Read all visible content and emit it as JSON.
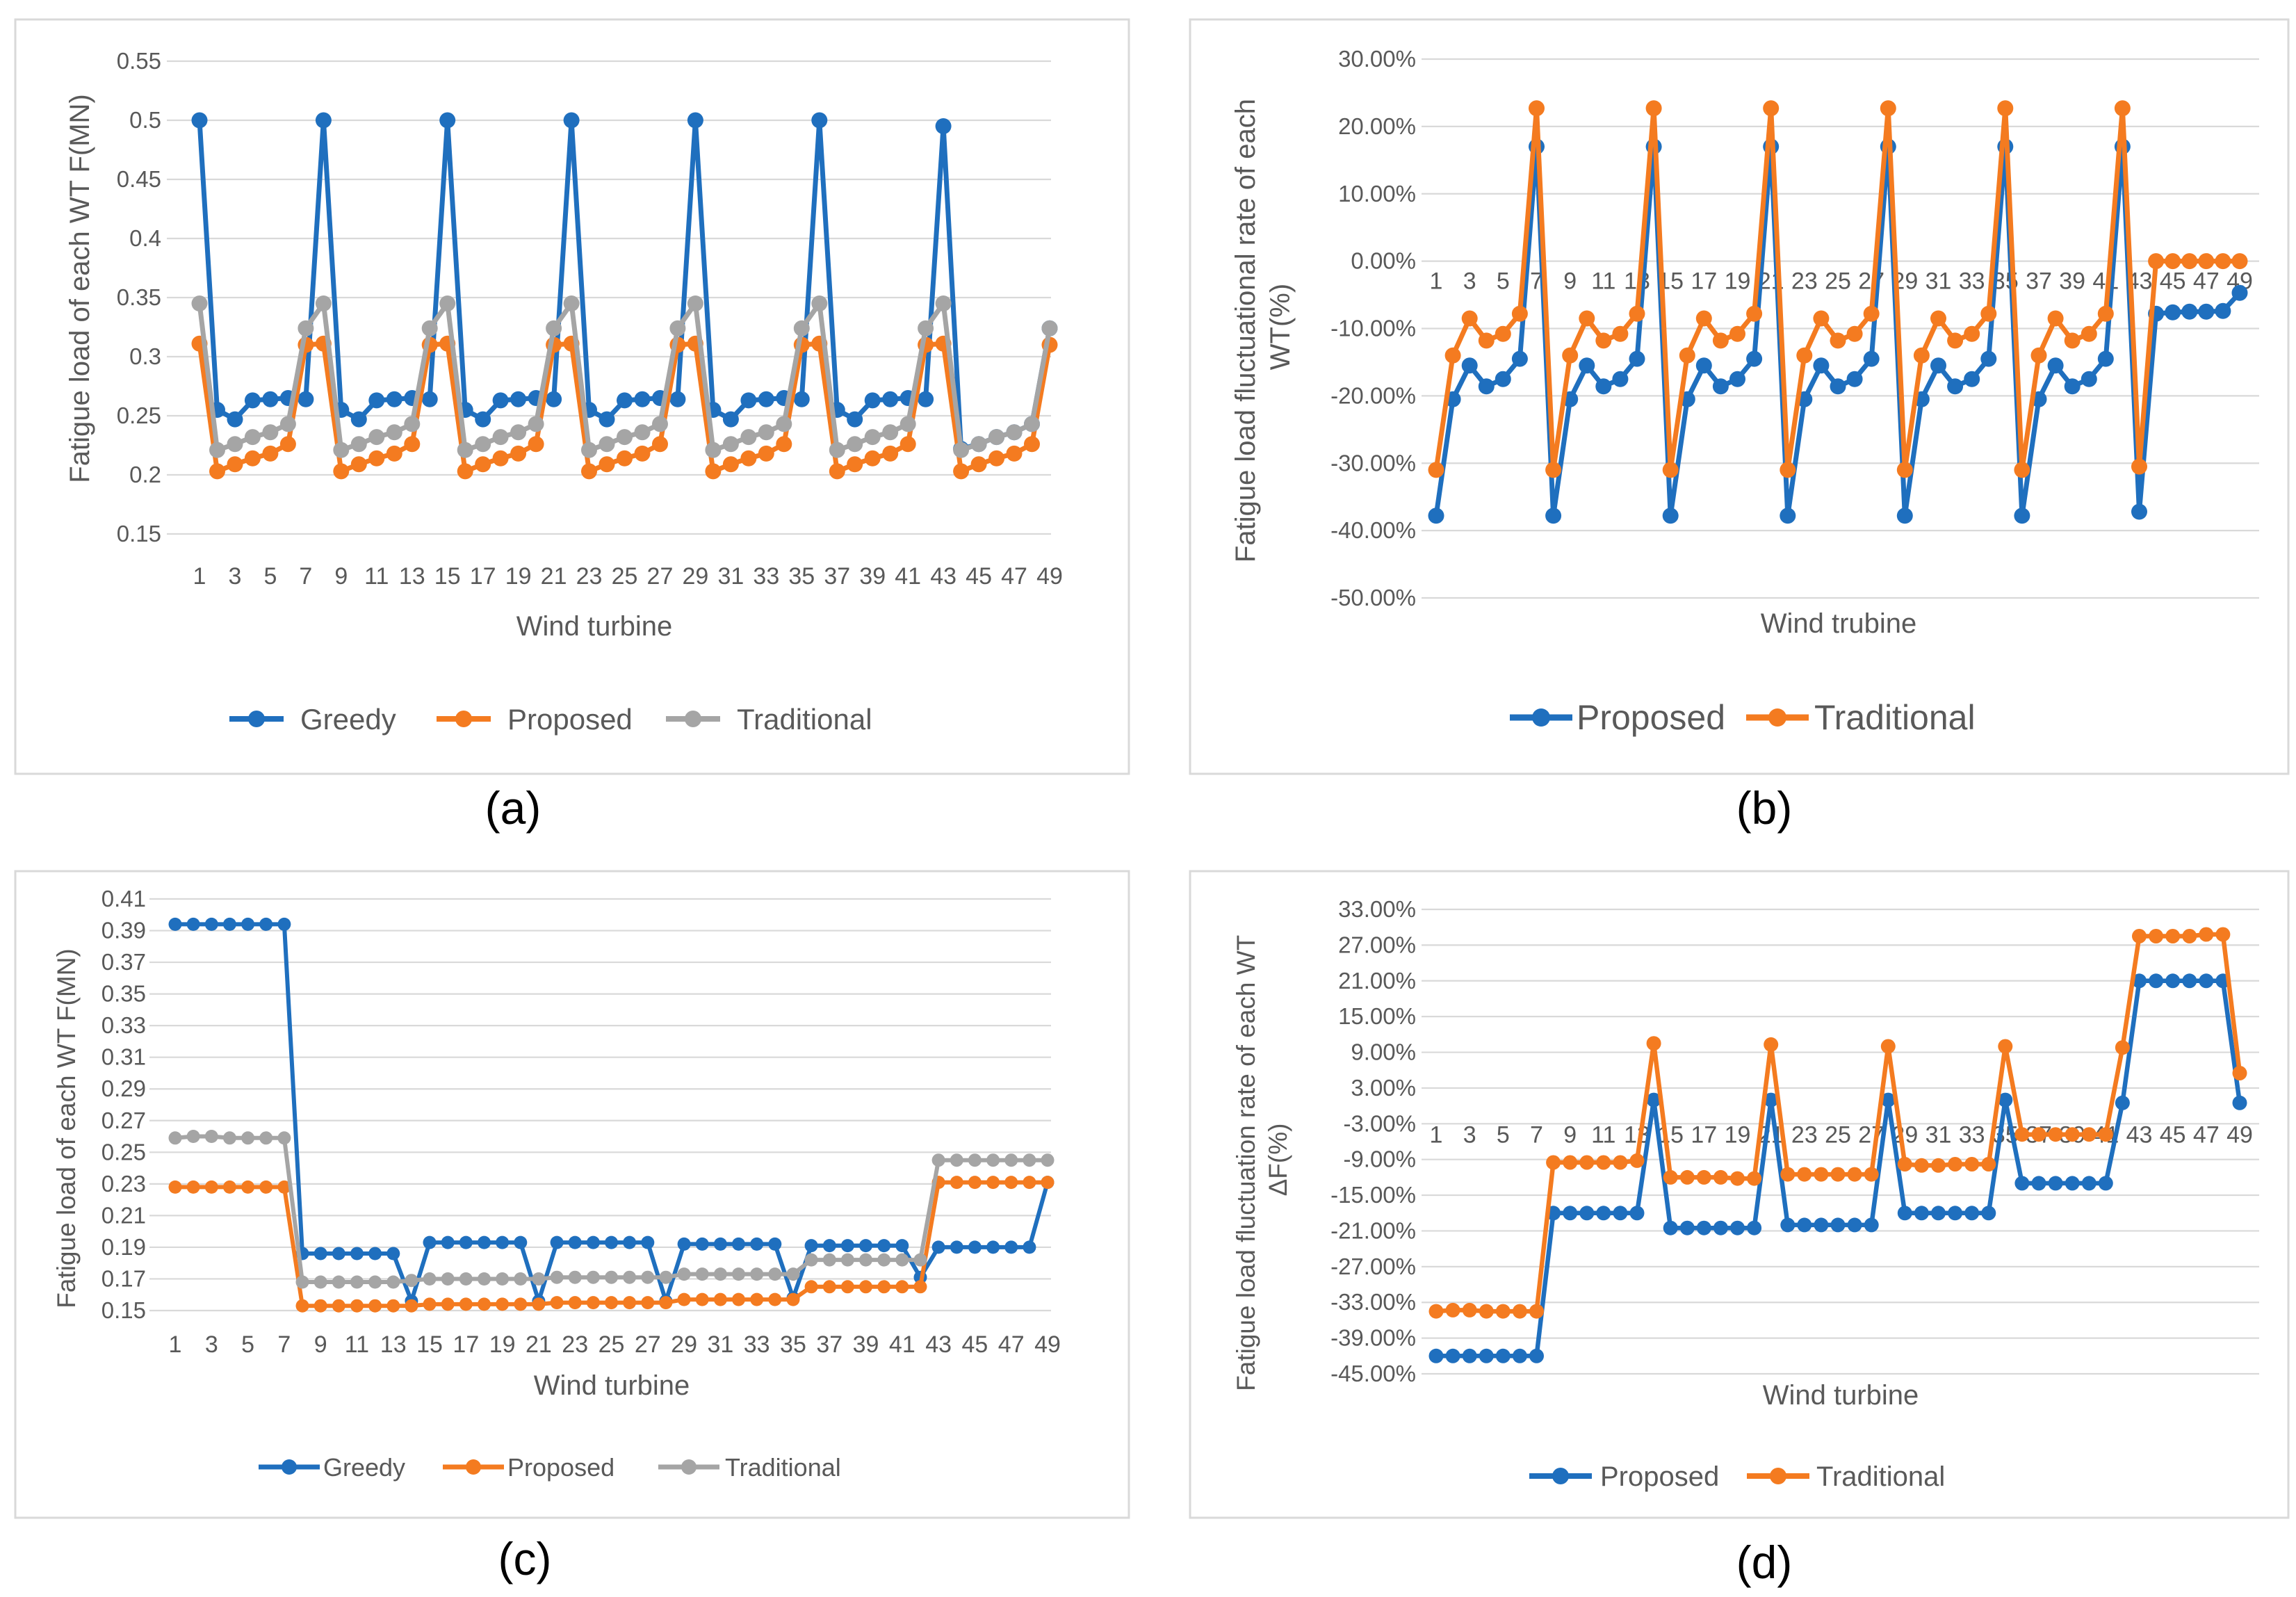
{
  "colors": {
    "blue": "#1F6FBE",
    "orange": "#F47B20",
    "gray": "#A5A5A5"
  },
  "chart_data": [
    {
      "id": "a",
      "caption": "(a)",
      "type": "line",
      "ylabel": "Fatigue load of each WT F(MN)",
      "xlabel": "Wind turbine",
      "ylim": [
        0.15,
        0.55
      ],
      "yticks": [
        "0.15",
        "0.2",
        "0.25",
        "0.3",
        "0.35",
        "0.4",
        "0.45",
        "0.5",
        "0.55"
      ],
      "xtick_labels": [
        "1",
        "3",
        "5",
        "7",
        "9",
        "11",
        "13",
        "15",
        "17",
        "19",
        "21",
        "23",
        "25",
        "27",
        "29",
        "31",
        "33",
        "35",
        "37",
        "39",
        "41",
        "43",
        "45",
        "47",
        "49"
      ],
      "series": [
        {
          "name": "Greedy",
          "color": "#1F6FBE",
          "values": [
            0.5,
            0.255,
            0.247,
            0.263,
            0.264,
            0.265,
            0.264,
            0.5,
            0.255,
            0.247,
            0.263,
            0.264,
            0.265,
            0.264,
            0.5,
            0.255,
            0.247,
            0.263,
            0.264,
            0.265,
            0.264,
            0.5,
            0.255,
            0.247,
            0.263,
            0.264,
            0.265,
            0.264,
            0.5,
            0.255,
            0.247,
            0.263,
            0.264,
            0.265,
            0.264,
            0.5,
            0.255,
            0.247,
            0.263,
            0.264,
            0.265,
            0.264,
            0.495,
            0.222,
            0.226,
            0.232,
            0.236,
            0.243,
            0.324
          ]
        },
        {
          "name": "Proposed",
          "color": "#F47B20",
          "values": [
            0.311,
            0.203,
            0.209,
            0.214,
            0.218,
            0.226,
            0.31,
            0.311,
            0.203,
            0.209,
            0.214,
            0.218,
            0.226,
            0.31,
            0.311,
            0.203,
            0.209,
            0.214,
            0.218,
            0.226,
            0.31,
            0.311,
            0.203,
            0.209,
            0.214,
            0.218,
            0.226,
            0.31,
            0.311,
            0.203,
            0.209,
            0.214,
            0.218,
            0.226,
            0.31,
            0.311,
            0.203,
            0.209,
            0.214,
            0.218,
            0.226,
            0.31,
            0.311,
            0.203,
            0.209,
            0.214,
            0.218,
            0.226,
            0.31
          ]
        },
        {
          "name": "Traditional",
          "color": "#A5A5A5",
          "values": [
            0.345,
            0.221,
            0.226,
            0.232,
            0.236,
            0.243,
            0.324,
            0.345,
            0.221,
            0.226,
            0.232,
            0.236,
            0.243,
            0.324,
            0.345,
            0.221,
            0.226,
            0.232,
            0.236,
            0.243,
            0.324,
            0.345,
            0.221,
            0.226,
            0.232,
            0.236,
            0.243,
            0.324,
            0.345,
            0.221,
            0.226,
            0.232,
            0.236,
            0.243,
            0.324,
            0.345,
            0.221,
            0.226,
            0.232,
            0.236,
            0.243,
            0.324,
            0.345,
            0.221,
            0.226,
            0.232,
            0.236,
            0.243,
            0.324
          ]
        }
      ]
    },
    {
      "id": "b",
      "caption": "(b)",
      "type": "line",
      "ylabel": "Fatigue load fluctuational rate of each WT(%)",
      "xlabel": "Wind trubine",
      "ylim": [
        -50,
        30
      ],
      "yticks": [
        "-50.00%",
        "-40.00%",
        "-30.00%",
        "-20.00%",
        "-10.00%",
        "0.00%",
        "10.00%",
        "20.00%",
        "30.00%"
      ],
      "xtick_labels": [
        "1",
        "3",
        "5",
        "7",
        "9",
        "11",
        "13",
        "15",
        "17",
        "19",
        "21",
        "23",
        "25",
        "27",
        "29",
        "31",
        "33",
        "35",
        "37",
        "39",
        "41",
        "43",
        "45",
        "47",
        "49"
      ],
      "series": [
        {
          "name": "Proposed",
          "color": "#1F6FBE",
          "values": [
            -37.8,
            -20.5,
            -15.5,
            -18.6,
            -17.5,
            -14.5,
            17,
            -37.8,
            -20.5,
            -15.5,
            -18.6,
            -17.5,
            -14.5,
            17,
            -37.8,
            -20.5,
            -15.5,
            -18.6,
            -17.5,
            -14.5,
            17,
            -37.8,
            -20.5,
            -15.5,
            -18.6,
            -17.5,
            -14.5,
            17,
            -37.8,
            -20.5,
            -15.5,
            -18.6,
            -17.5,
            -14.5,
            17,
            -37.8,
            -20.5,
            -15.5,
            -18.6,
            -17.5,
            -14.5,
            17,
            -37.2,
            -7.8,
            -7.6,
            -7.5,
            -7.5,
            -7.4,
            -4.7
          ]
        },
        {
          "name": "Traditional",
          "color": "#F47B20",
          "values": [
            -31,
            -14,
            -8.5,
            -11.8,
            -10.8,
            -7.8,
            22.7,
            -31,
            -14,
            -8.5,
            -11.8,
            -10.8,
            -7.8,
            22.7,
            -31,
            -14,
            -8.5,
            -11.8,
            -10.8,
            -7.8,
            22.7,
            -31,
            -14,
            -8.5,
            -11.8,
            -10.8,
            -7.8,
            22.7,
            -31,
            -14,
            -8.5,
            -11.8,
            -10.8,
            -7.8,
            22.7,
            -31,
            -14,
            -8.5,
            -11.8,
            -10.8,
            -7.8,
            22.7,
            -30.5,
            0,
            0,
            0,
            0,
            0,
            0
          ]
        }
      ]
    },
    {
      "id": "c",
      "caption": "(c)",
      "type": "line",
      "ylabel": "Fatigue load  of each WT F(MN)",
      "xlabel": "Wind turbine",
      "ylim": [
        0.15,
        0.41
      ],
      "yticks": [
        "0.15",
        "0.17",
        "0.19",
        "0.21",
        "0.23",
        "0.25",
        "0.27",
        "0.29",
        "0.31",
        "0.33",
        "0.35",
        "0.37",
        "0.39",
        "0.41"
      ],
      "xtick_labels": [
        "1",
        "3",
        "5",
        "7",
        "9",
        "11",
        "13",
        "15",
        "17",
        "19",
        "21",
        "23",
        "25",
        "27",
        "29",
        "31",
        "33",
        "35",
        "37",
        "39",
        "41",
        "43",
        "45",
        "47",
        "49"
      ],
      "series": [
        {
          "name": "Greedy",
          "color": "#1F6FBE",
          "values": [
            0.394,
            0.394,
            0.394,
            0.394,
            0.394,
            0.394,
            0.394,
            0.186,
            0.186,
            0.186,
            0.186,
            0.186,
            0.186,
            0.156,
            0.193,
            0.193,
            0.193,
            0.193,
            0.193,
            0.193,
            0.156,
            0.193,
            0.193,
            0.193,
            0.193,
            0.193,
            0.193,
            0.156,
            0.192,
            0.192,
            0.192,
            0.192,
            0.192,
            0.192,
            0.158,
            0.191,
            0.191,
            0.191,
            0.191,
            0.191,
            0.191,
            0.171,
            0.19,
            0.19,
            0.19,
            0.19,
            0.19,
            0.19,
            0.231
          ]
        },
        {
          "name": "Proposed",
          "color": "#F47B20",
          "values": [
            0.228,
            0.228,
            0.228,
            0.228,
            0.228,
            0.228,
            0.228,
            0.153,
            0.153,
            0.153,
            0.153,
            0.153,
            0.153,
            0.153,
            0.154,
            0.154,
            0.154,
            0.154,
            0.154,
            0.154,
            0.154,
            0.155,
            0.155,
            0.155,
            0.155,
            0.155,
            0.155,
            0.155,
            0.157,
            0.157,
            0.157,
            0.157,
            0.157,
            0.157,
            0.157,
            0.165,
            0.165,
            0.165,
            0.165,
            0.165,
            0.165,
            0.165,
            0.231,
            0.231,
            0.231,
            0.231,
            0.231,
            0.231,
            0.231
          ]
        },
        {
          "name": "Traditional",
          "color": "#A5A5A5",
          "values": [
            0.259,
            0.26,
            0.26,
            0.259,
            0.259,
            0.259,
            0.259,
            0.168,
            0.168,
            0.168,
            0.168,
            0.168,
            0.168,
            0.169,
            0.17,
            0.17,
            0.17,
            0.17,
            0.17,
            0.17,
            0.17,
            0.171,
            0.171,
            0.171,
            0.171,
            0.171,
            0.171,
            0.171,
            0.173,
            0.173,
            0.173,
            0.173,
            0.173,
            0.173,
            0.173,
            0.182,
            0.182,
            0.182,
            0.182,
            0.182,
            0.182,
            0.182,
            0.245,
            0.245,
            0.245,
            0.245,
            0.245,
            0.245,
            0.245
          ]
        }
      ]
    },
    {
      "id": "d",
      "caption": "(d)",
      "type": "line",
      "ylabel": "Fatigue load fluctuation rate of each WT ΔF(%)",
      "xlabel": "Wind turbine",
      "ylim": [
        -45,
        33
      ],
      "yticks": [
        "-45.00%",
        "-39.00%",
        "-33.00%",
        "-27.00%",
        "-21.00%",
        "-15.00%",
        "-9.00%",
        "-3.00%",
        "3.00%",
        "9.00%",
        "15.00%",
        "21.00%",
        "27.00%",
        "33.00%"
      ],
      "xtick_labels": [
        "1",
        "3",
        "5",
        "7",
        "9",
        "11",
        "13",
        "15",
        "17",
        "19",
        "21",
        "23",
        "25",
        "27",
        "29",
        "31",
        "33",
        "35",
        "37",
        "39",
        "41",
        "43",
        "45",
        "47",
        "49"
      ],
      "series": [
        {
          "name": "Proposed",
          "color": "#1F6FBE",
          "values": [
            -42,
            -42,
            -42,
            -42,
            -42,
            -42,
            -42,
            -18,
            -18,
            -18,
            -18,
            -18,
            -18,
            1,
            -20.5,
            -20.5,
            -20.5,
            -20.5,
            -20.5,
            -20.5,
            1,
            -20,
            -20,
            -20,
            -20,
            -20,
            -20,
            1,
            -18,
            -18,
            -18,
            -18,
            -18,
            -18,
            1,
            -13,
            -13,
            -13,
            -13,
            -13,
            -13,
            0.5,
            21,
            21,
            21,
            21,
            21,
            21,
            0.5
          ]
        },
        {
          "name": "Traditional",
          "color": "#F47B20",
          "values": [
            -34.5,
            -34.3,
            -34.3,
            -34.5,
            -34.5,
            -34.5,
            -34.5,
            -9.5,
            -9.5,
            -9.5,
            -9.5,
            -9.5,
            -9.2,
            10.5,
            -12,
            -12,
            -12,
            -12,
            -12.2,
            -12.2,
            10.3,
            -11.5,
            -11.5,
            -11.5,
            -11.5,
            -11.5,
            -11.5,
            10,
            -9.8,
            -10,
            -10,
            -9.8,
            -9.8,
            -9.8,
            10,
            -4.8,
            -4.8,
            -4.8,
            -4.8,
            -4.8,
            -4.8,
            9.8,
            28.5,
            28.5,
            28.5,
            28.5,
            28.8,
            28.8,
            5.5
          ]
        }
      ]
    }
  ]
}
